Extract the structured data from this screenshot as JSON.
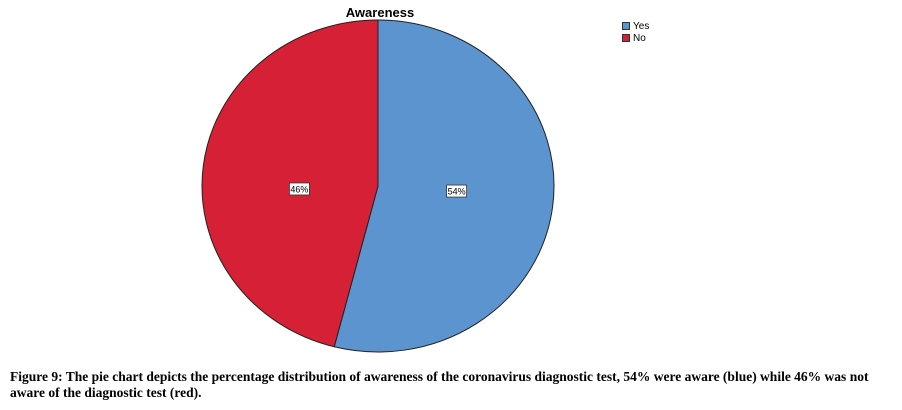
{
  "chart_data": {
    "type": "pie",
    "title": "Awareness",
    "categories": [
      "Yes",
      "No"
    ],
    "values": [
      54,
      46
    ],
    "labels": [
      "54%",
      "46%"
    ],
    "colors": [
      "#5b94cf",
      "#d62035"
    ],
    "legend": {
      "position": "top-right",
      "entries": [
        "Yes",
        "No"
      ]
    }
  },
  "caption": "Figure 9: The pie chart depicts the percentage distribution of awareness of the coronavirus diagnostic test, 54% were aware (blue) while 46% was not aware of the diagnostic test (red)."
}
